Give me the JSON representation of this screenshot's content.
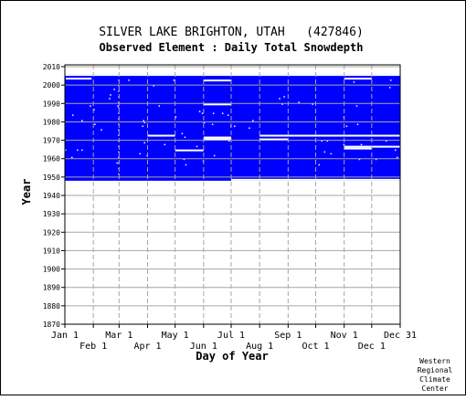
{
  "chart_data": {
    "type": "heatmap",
    "title": "SILVER LAKE BRIGHTON, UTAH   (427846)",
    "subtitle": "Observed Element : Daily Total Snowdepth",
    "xlabel": "Day of Year",
    "ylabel": "Year",
    "ylim": [
      1870,
      2011
    ],
    "xlim": [
      1,
      366
    ],
    "yticks": [
      1870,
      1880,
      1890,
      1900,
      1910,
      1920,
      1930,
      1940,
      1950,
      1960,
      1970,
      1980,
      1990,
      2000,
      2010
    ],
    "xticks_top": [
      {
        "label": "Jan 1",
        "day": 1
      },
      {
        "label": "Mar 1",
        "day": 60
      },
      {
        "label": "May 1",
        "day": 121
      },
      {
        "label": "Jul 1",
        "day": 182
      },
      {
        "label": "Sep 1",
        "day": 244
      },
      {
        "label": "Nov 1",
        "day": 305
      },
      {
        "label": "Dec 31",
        "day": 366
      }
    ],
    "xticks_bottom": [
      {
        "label": "Feb 1",
        "day": 32
      },
      {
        "label": "Apr 1",
        "day": 91
      },
      {
        "label": "Jun 1",
        "day": 152
      },
      {
        "label": "Aug 1",
        "day": 213
      },
      {
        "label": "Oct 1",
        "day": 274
      },
      {
        "label": "Dec 1",
        "day": 335
      }
    ],
    "grid": true,
    "data_color": "#0000ff",
    "coverage": {
      "start_year": 1948,
      "end_year": 2005
    },
    "missing_periods": [
      {
        "year": 2005,
        "start_day": 1,
        "end_day": 366
      },
      {
        "year": 2003,
        "start_day": 2,
        "end_day": 30
      },
      {
        "year": 2003,
        "start_day": 305,
        "end_day": 335
      },
      {
        "year": 2002,
        "start_day": 152,
        "end_day": 182
      },
      {
        "year": 1989,
        "start_day": 152,
        "end_day": 182
      },
      {
        "year": 1972,
        "start_day": 91,
        "end_day": 121
      },
      {
        "year": 1972,
        "start_day": 213,
        "end_day": 366
      },
      {
        "year": 1971,
        "start_day": 152,
        "end_day": 182
      },
      {
        "year": 1970,
        "start_day": 152,
        "end_day": 182
      },
      {
        "year": 1970,
        "start_day": 213,
        "end_day": 244
      },
      {
        "year": 1966,
        "start_day": 305,
        "end_day": 366
      },
      {
        "year": 1965,
        "start_day": 305,
        "end_day": 335
      },
      {
        "year": 1964,
        "start_day": 121,
        "end_day": 152
      },
      {
        "year": 1948,
        "start_day": 182,
        "end_day": 366
      }
    ],
    "footer": [
      "Western",
      "Regional",
      "Climate",
      "Center"
    ]
  }
}
